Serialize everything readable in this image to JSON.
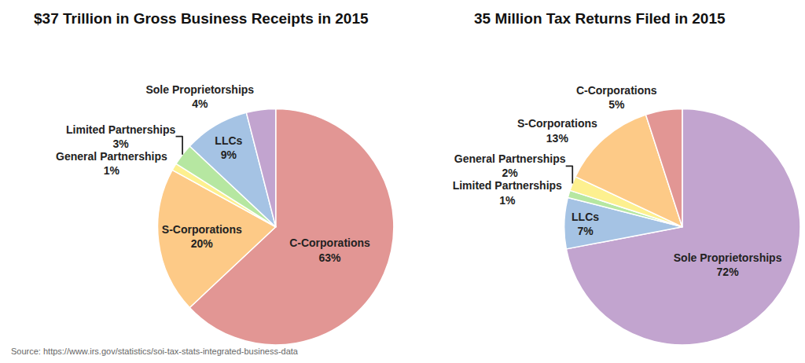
{
  "chart_data": [
    {
      "type": "pie",
      "title": "$37 Trillion in Gross Business Receipts in 2015",
      "categories": [
        "C-Corporations",
        "S-Corporations",
        "General Partnerships",
        "Limited Partnerships",
        "LLCs",
        "Sole Proprietorships"
      ],
      "values": [
        63,
        20,
        1,
        3,
        9,
        4
      ],
      "value_labels": [
        "63%",
        "20%",
        "1%",
        "3%",
        "9%",
        "4%"
      ],
      "colors": [
        "#e29694",
        "#fdca87",
        "#fdf08f",
        "#b6e7a1",
        "#a5c3e4",
        "#c2a4cf"
      ],
      "data_labels": true
    },
    {
      "type": "pie",
      "title": "35 Million Tax Returns Filed in 2015",
      "categories": [
        "Sole Proprietorships",
        "LLCs",
        "Limited Partnerships",
        "General Partnerships",
        "S-Corporations",
        "C-Corporations"
      ],
      "values": [
        72,
        7,
        1,
        2,
        13,
        5
      ],
      "value_labels": [
        "72%",
        "7%",
        "1%",
        "2%",
        "13%",
        "5%"
      ],
      "colors": [
        "#c2a4cf",
        "#a5c3e4",
        "#b6e7a1",
        "#fdf08f",
        "#fdca87",
        "#e29694"
      ],
      "data_labels": true
    }
  ],
  "source": "Source: https://www.irs.gov/statistics/soi-tax-stats-integrated-business-data"
}
